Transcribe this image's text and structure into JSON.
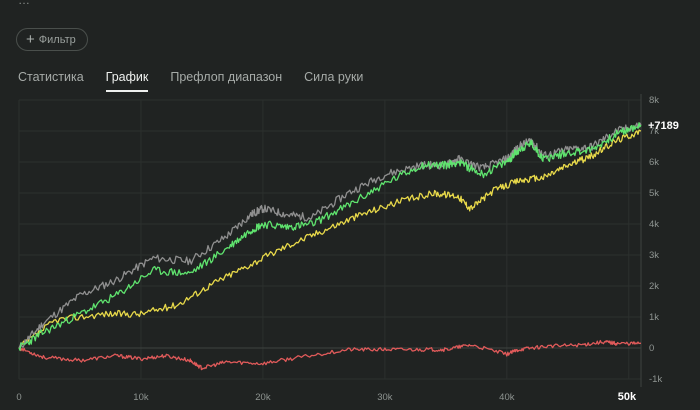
{
  "header": {
    "partial_title": "…"
  },
  "filter": {
    "label": "Фильтр"
  },
  "tabs": [
    {
      "label": "Статистика",
      "active": false
    },
    {
      "label": "График",
      "active": true
    },
    {
      "label": "Префлоп диапазон",
      "active": false
    },
    {
      "label": "Сила руки",
      "active": false
    }
  ],
  "colors": {
    "background": "#202322",
    "green": "#5fe36e",
    "yellow": "#e8d94a",
    "gray": "#8f8f8f",
    "red": "#e05a5a"
  },
  "chart_data": {
    "type": "line",
    "x_ticks": [
      "0",
      "10k",
      "20k",
      "30k",
      "40k",
      "50k"
    ],
    "y_ticks": [
      "8k",
      "7k",
      "6k",
      "5k",
      "4k",
      "3k",
      "2k",
      "1k",
      "0",
      "-1k"
    ],
    "xlim": [
      0,
      51000
    ],
    "ylim": [
      -1000,
      8000
    ],
    "final_result_label": "+7189",
    "series": [
      {
        "key": "gray",
        "color": "#8f8f8f",
        "x": [
          0,
          2000,
          5000,
          8000,
          11000,
          14000,
          17000,
          19000,
          20000,
          22000,
          24000,
          27000,
          30000,
          33000,
          35000,
          36000,
          38000,
          40000,
          41000,
          42000,
          43000,
          45000,
          47000,
          49000,
          51000
        ],
        "y": [
          0,
          800,
          1700,
          2200,
          2900,
          2800,
          3600,
          4300,
          4500,
          4300,
          4200,
          5000,
          5600,
          5900,
          5900,
          6100,
          5800,
          6100,
          6500,
          6700,
          6200,
          6400,
          6500,
          7000,
          7189
        ]
      },
      {
        "key": "green",
        "color": "#5fe36e",
        "x": [
          0,
          2000,
          5000,
          8000,
          11000,
          14000,
          17000,
          19000,
          20000,
          22000,
          24000,
          27000,
          30000,
          33000,
          35000,
          36000,
          38000,
          40000,
          41000,
          42000,
          43000,
          45000,
          47000,
          49000,
          51000
        ],
        "y": [
          0,
          500,
          1100,
          1700,
          2500,
          2400,
          3200,
          3800,
          4000,
          3900,
          4000,
          4600,
          5300,
          5900,
          5900,
          6000,
          5600,
          6000,
          6400,
          6600,
          6100,
          6300,
          6400,
          6900,
          7189
        ]
      },
      {
        "key": "yellow",
        "color": "#e8d94a",
        "x": [
          0,
          3000,
          7000,
          10000,
          13000,
          16000,
          19000,
          22000,
          25000,
          28000,
          31000,
          34000,
          36000,
          37000,
          39000,
          41000,
          43000,
          45000,
          47000,
          49000,
          51000
        ],
        "y": [
          0,
          900,
          1100,
          1100,
          1400,
          2100,
          2700,
          3300,
          3800,
          4300,
          4700,
          5000,
          4900,
          4500,
          5100,
          5400,
          5500,
          5900,
          6200,
          6700,
          7000
        ]
      },
      {
        "key": "red",
        "color": "#e05a5a",
        "x": [
          0,
          2000,
          5000,
          8000,
          10000,
          12000,
          14000,
          15000,
          17000,
          20000,
          23000,
          27000,
          30000,
          33000,
          35000,
          37000,
          40000,
          41000,
          43000,
          46000,
          48000,
          49000,
          51000
        ],
        "y": [
          0,
          -300,
          -400,
          -250,
          -350,
          -250,
          -400,
          -650,
          -450,
          -500,
          -300,
          -50,
          -50,
          -50,
          -50,
          100,
          -200,
          -50,
          50,
          100,
          200,
          150,
          150
        ]
      }
    ]
  }
}
